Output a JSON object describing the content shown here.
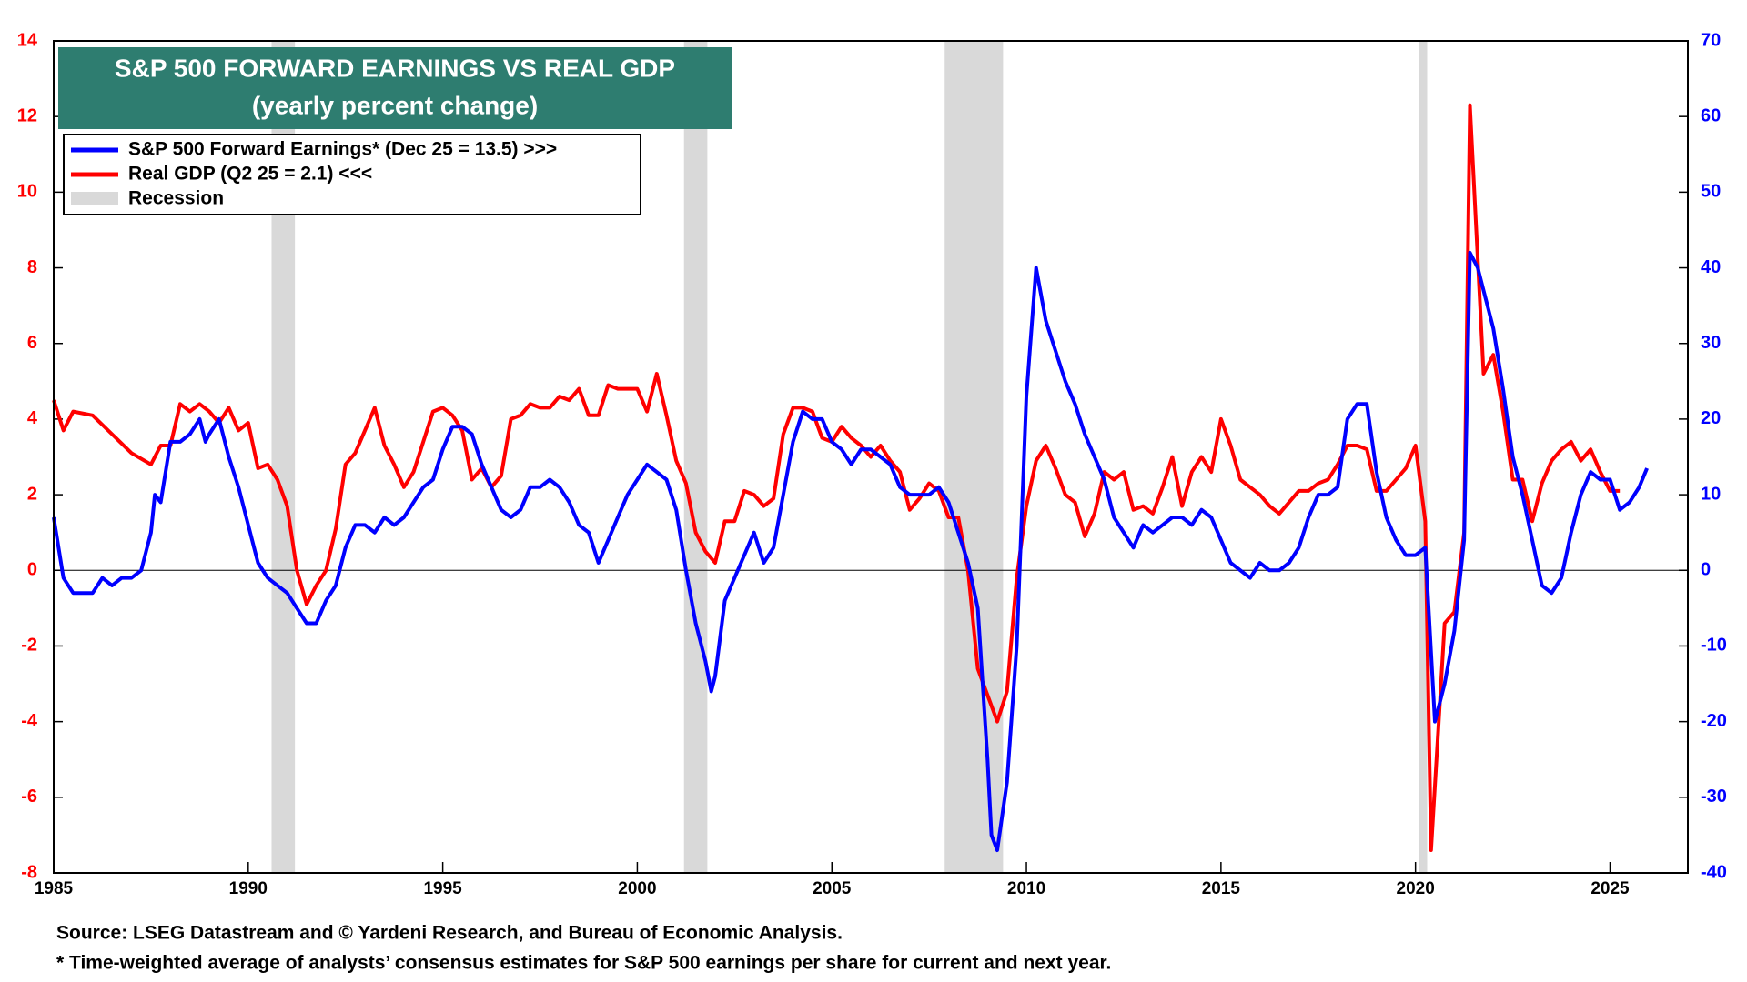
{
  "chart_data": {
    "type": "line",
    "title": "S&P 500 FORWARD EARNINGS VS REAL GDP",
    "subtitle": "(yearly percent change)",
    "source": "Source: LSEG Datastream and © Yardeni Research, and  Bureau of Economic Analysis.",
    "footnote": "* Time-weighted average of analysts’ consensus estimates for S&P 500 earnings per share for current and next year.",
    "xlim": [
      1985,
      2027
    ],
    "xticks": [
      1985,
      1990,
      1995,
      2000,
      2005,
      2010,
      2015,
      2020,
      2025
    ],
    "ylim": [
      -8,
      14
    ],
    "yticks": [
      -8,
      -6,
      -4,
      -2,
      0,
      2,
      4,
      6,
      8,
      10,
      12,
      14
    ],
    "y2lim": [
      -40,
      70
    ],
    "y2ticks": [
      -40,
      -30,
      -20,
      -10,
      0,
      10,
      20,
      30,
      40,
      50,
      60,
      70
    ],
    "legend_position": "upper left",
    "recession_name": "Recession",
    "recession_color": "#d9d9d9",
    "recessions": [
      [
        1990.6,
        1991.2
      ],
      [
        2001.2,
        2001.8
      ],
      [
        2007.9,
        2009.4
      ],
      [
        2020.1,
        2020.3
      ]
    ],
    "series": [
      {
        "name": "S&P 500 Forward Earnings* (Dec 25 = 13.5) >>>",
        "color": "#0000ff",
        "axis": "y2",
        "x": [
          1985.0,
          1985.25,
          1985.5,
          1985.75,
          1986.0,
          1986.25,
          1986.5,
          1986.75,
          1987.0,
          1987.25,
          1987.5,
          1987.6,
          1987.75,
          1988.0,
          1988.25,
          1988.5,
          1988.75,
          1988.9,
          1989.0,
          1989.25,
          1989.5,
          1989.75,
          1990.0,
          1990.25,
          1990.5,
          1990.75,
          1991.0,
          1991.25,
          1991.5,
          1991.75,
          1992.0,
          1992.25,
          1992.5,
          1992.75,
          1993.0,
          1993.25,
          1993.5,
          1993.75,
          1994.0,
          1994.25,
          1994.5,
          1994.75,
          1995.0,
          1995.25,
          1995.5,
          1995.75,
          1996.0,
          1996.25,
          1996.5,
          1996.75,
          1997.0,
          1997.25,
          1997.5,
          1997.75,
          1998.0,
          1998.25,
          1998.5,
          1998.75,
          1999.0,
          1999.25,
          1999.5,
          1999.75,
          2000.0,
          2000.25,
          2000.5,
          2000.75,
          2001.0,
          2001.25,
          2001.5,
          2001.75,
          2001.9,
          2002.0,
          2002.25,
          2002.5,
          2002.75,
          2003.0,
          2003.25,
          2003.5,
          2003.75,
          2004.0,
          2004.25,
          2004.5,
          2004.75,
          2005.0,
          2005.25,
          2005.5,
          2005.75,
          2006.0,
          2006.25,
          2006.5,
          2006.75,
          2007.0,
          2007.25,
          2007.5,
          2007.75,
          2008.0,
          2008.25,
          2008.5,
          2008.75,
          2009.0,
          2009.1,
          2009.25,
          2009.5,
          2009.75,
          2010.0,
          2010.25,
          2010.5,
          2010.75,
          2011.0,
          2011.25,
          2011.5,
          2011.75,
          2012.0,
          2012.25,
          2012.5,
          2012.75,
          2013.0,
          2013.25,
          2013.5,
          2013.75,
          2014.0,
          2014.25,
          2014.5,
          2014.75,
          2015.0,
          2015.25,
          2015.5,
          2015.75,
          2016.0,
          2016.25,
          2016.5,
          2016.75,
          2017.0,
          2017.25,
          2017.5,
          2017.75,
          2018.0,
          2018.25,
          2018.5,
          2018.75,
          2019.0,
          2019.25,
          2019.5,
          2019.75,
          2020.0,
          2020.25,
          2020.5,
          2020.75,
          2021.0,
          2021.25,
          2021.4,
          2021.6,
          2021.75,
          2022.0,
          2022.25,
          2022.5,
          2022.75,
          2023.0,
          2023.25,
          2023.5,
          2023.75,
          2024.0,
          2024.25,
          2024.5,
          2024.75,
          2025.0,
          2025.25,
          2025.5,
          2025.75,
          2025.95
        ],
        "values": [
          7,
          -1,
          -3,
          -3,
          -3,
          -1,
          -2,
          -1,
          -1,
          0,
          5,
          10,
          9,
          17,
          17,
          18,
          20,
          17,
          18,
          20,
          15,
          11,
          6,
          1,
          -1,
          -2,
          -3,
          -5,
          -7,
          -7,
          -4,
          -2,
          3,
          6,
          6,
          5,
          7,
          6,
          7,
          9,
          11,
          12,
          16,
          19,
          19,
          18,
          14,
          11,
          8,
          7,
          8,
          11,
          11,
          12,
          11,
          9,
          6,
          5,
          1,
          4,
          7,
          10,
          12,
          14,
          13,
          12,
          8,
          0,
          -7,
          -12,
          -16,
          -14,
          -4,
          -1,
          2,
          5,
          1,
          3,
          10,
          17,
          21,
          20,
          20,
          17,
          16,
          14,
          16,
          16,
          15,
          14,
          11,
          10,
          10,
          10,
          11,
          9,
          5,
          1,
          -5,
          -25,
          -35,
          -37,
          -28,
          -10,
          23,
          40,
          33,
          29,
          25,
          22,
          18,
          15,
          12,
          7,
          5,
          3,
          6,
          5,
          6,
          7,
          7,
          6,
          8,
          7,
          4,
          1,
          0,
          -1,
          1,
          0,
          0,
          1,
          3,
          7,
          10,
          10,
          11,
          20,
          22,
          22,
          13,
          7,
          4,
          2,
          2,
          3,
          -20,
          -15,
          -8,
          4,
          42,
          40,
          37,
          32,
          24,
          15,
          10,
          4,
          -2,
          -3,
          -1,
          5,
          10,
          13,
          12,
          12,
          8,
          9,
          11,
          13.5
        ]
      },
      {
        "name": "Real GDP  (Q2 25 = 2.1) <<<",
        "color": "#ff0000",
        "axis": "y",
        "x": [
          1985.0,
          1985.25,
          1985.5,
          1986.0,
          1986.5,
          1987.0,
          1987.5,
          1987.75,
          1988.0,
          1988.25,
          1988.5,
          1988.75,
          1989.0,
          1989.25,
          1989.5,
          1989.75,
          1990.0,
          1990.25,
          1990.5,
          1990.75,
          1991.0,
          1991.25,
          1991.5,
          1991.75,
          1992.0,
          1992.25,
          1992.5,
          1992.75,
          1993.0,
          1993.25,
          1993.5,
          1993.75,
          1994.0,
          1994.25,
          1994.5,
          1994.75,
          1995.0,
          1995.25,
          1995.5,
          1995.75,
          1996.0,
          1996.25,
          1996.5,
          1996.75,
          1997.0,
          1997.25,
          1997.5,
          1997.75,
          1998.0,
          1998.25,
          1998.5,
          1998.75,
          1999.0,
          1999.25,
          1999.5,
          1999.75,
          2000.0,
          2000.25,
          2000.5,
          2000.75,
          2001.0,
          2001.25,
          2001.5,
          2001.75,
          2002.0,
          2002.25,
          2002.5,
          2002.75,
          2003.0,
          2003.25,
          2003.5,
          2003.75,
          2004.0,
          2004.25,
          2004.5,
          2004.75,
          2005.0,
          2005.25,
          2005.5,
          2005.75,
          2006.0,
          2006.25,
          2006.5,
          2006.75,
          2007.0,
          2007.25,
          2007.5,
          2007.75,
          2008.0,
          2008.25,
          2008.5,
          2008.75,
          2009.0,
          2009.25,
          2009.5,
          2009.75,
          2010.0,
          2010.25,
          2010.5,
          2010.75,
          2011.0,
          2011.25,
          2011.5,
          2011.75,
          2012.0,
          2012.25,
          2012.5,
          2012.75,
          2013.0,
          2013.25,
          2013.5,
          2013.75,
          2014.0,
          2014.25,
          2014.5,
          2014.75,
          2015.0,
          2015.25,
          2015.5,
          2015.75,
          2016.0,
          2016.25,
          2016.5,
          2016.75,
          2017.0,
          2017.25,
          2017.5,
          2017.75,
          2018.0,
          2018.25,
          2018.5,
          2018.75,
          2019.0,
          2019.25,
          2019.5,
          2019.75,
          2020.0,
          2020.25,
          2020.4,
          2020.75,
          2021.0,
          2021.25,
          2021.4,
          2021.75,
          2022.0,
          2022.25,
          2022.5,
          2022.75,
          2023.0,
          2023.25,
          2023.5,
          2023.75,
          2024.0,
          2024.25,
          2024.5,
          2024.75,
          2025.0,
          2025.25
        ],
        "values": [
          4.5,
          3.7,
          4.2,
          4.1,
          3.6,
          3.1,
          2.8,
          3.3,
          3.3,
          4.4,
          4.2,
          4.4,
          4.2,
          3.9,
          4.3,
          3.7,
          3.9,
          2.7,
          2.8,
          2.4,
          1.7,
          0.0,
          -0.9,
          -0.4,
          0.0,
          1.1,
          2.8,
          3.1,
          3.7,
          4.3,
          3.3,
          2.8,
          2.2,
          2.6,
          3.4,
          4.2,
          4.3,
          4.1,
          3.7,
          2.4,
          2.7,
          2.2,
          2.5,
          4.0,
          4.1,
          4.4,
          4.3,
          4.3,
          4.6,
          4.5,
          4.8,
          4.1,
          4.1,
          4.9,
          4.8,
          4.8,
          4.8,
          4.2,
          5.2,
          4.1,
          2.9,
          2.3,
          1.0,
          0.5,
          0.2,
          1.3,
          1.3,
          2.1,
          2.0,
          1.7,
          1.9,
          3.6,
          4.3,
          4.3,
          4.2,
          3.5,
          3.4,
          3.8,
          3.5,
          3.3,
          3.0,
          3.3,
          2.9,
          2.6,
          1.6,
          1.9,
          2.3,
          2.1,
          1.4,
          1.4,
          0.0,
          -2.6,
          -3.3,
          -4.0,
          -3.2,
          -0.2,
          1.7,
          2.9,
          3.3,
          2.7,
          2.0,
          1.8,
          0.9,
          1.5,
          2.6,
          2.4,
          2.6,
          1.6,
          1.7,
          1.5,
          2.2,
          3.0,
          1.7,
          2.6,
          3.0,
          2.6,
          4.0,
          3.3,
          2.4,
          2.2,
          2.0,
          1.7,
          1.5,
          1.8,
          2.1,
          2.1,
          2.3,
          2.4,
          2.8,
          3.3,
          3.3,
          3.2,
          2.1,
          2.1,
          2.4,
          2.7,
          3.3,
          1.3,
          -7.4,
          -1.4,
          -1.1,
          1.0,
          12.3,
          5.2,
          5.7,
          4.2,
          2.4,
          2.4,
          1.3,
          2.3,
          2.9,
          3.2,
          3.4,
          2.9,
          3.2,
          2.6,
          2.1,
          2.1
        ]
      }
    ]
  }
}
